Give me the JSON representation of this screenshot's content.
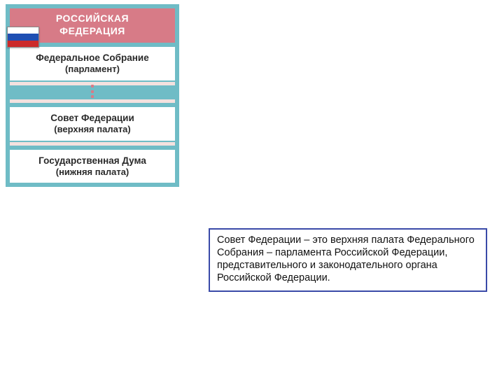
{
  "card": {
    "background_color": "#6fbcc6",
    "header": {
      "bg": "#d77b87",
      "fg": "#ffffff",
      "line1": "РОССИЙСКАЯ",
      "line2": "ФЕДЕРАЦИЯ"
    },
    "flag": {
      "stripes": [
        "#ffffff",
        "#1f4fb3",
        "#cc2a2a"
      ]
    },
    "blocks": [
      {
        "line1": "Федеральное Собрание",
        "line2": "(парламент)"
      },
      {
        "line1": "Совет Федерации",
        "line2": "(верхняя палата)"
      },
      {
        "line1": "Государственная Дума",
        "line2": "(нижняя палата)"
      }
    ],
    "block_bg": "#ffffff",
    "block_text_color": "#2a2a2a",
    "strip_color": "#f4e1df",
    "dot_color": "#d77b87"
  },
  "definition": {
    "border_color": "#3a4aa8",
    "text": "Совет Федерации – это верхняя палата Федерального Собрания – парламента Российской Федерации, представительного и законодательного органа Российской Федерации."
  }
}
